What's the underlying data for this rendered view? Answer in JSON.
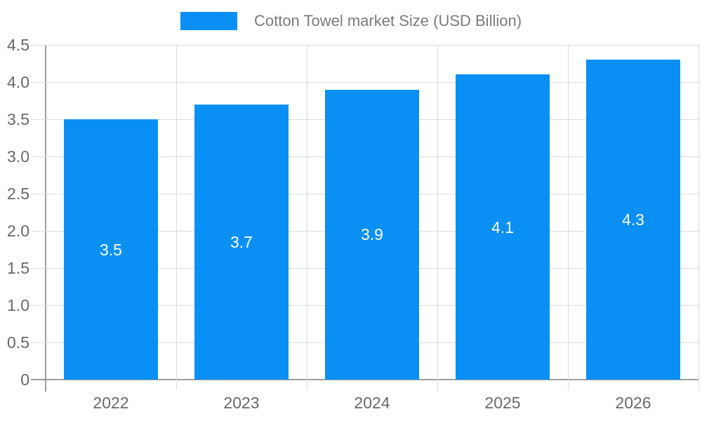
{
  "chart_data": {
    "type": "bar",
    "title": "",
    "legend": {
      "label": "Cotton Towel market Size (USD Billion)",
      "position": "top"
    },
    "categories": [
      "2022",
      "2023",
      "2024",
      "2025",
      "2026"
    ],
    "series": [
      {
        "name": "Cotton Towel market Size (USD Billion)",
        "values": [
          3.5,
          3.7,
          3.9,
          4.1,
          4.3
        ]
      }
    ],
    "value_labels": [
      "3.5",
      "3.7",
      "3.9",
      "4.1",
      "4.3"
    ],
    "xlabel": "",
    "ylabel": "",
    "ylim": [
      0,
      4.5
    ],
    "y_ticks": [
      {
        "value": 0,
        "label": "0"
      },
      {
        "value": 0.5,
        "label": "0.5"
      },
      {
        "value": 1,
        "label": "1.0"
      },
      {
        "value": 1.5,
        "label": "1.5"
      },
      {
        "value": 2,
        "label": "2.0"
      },
      {
        "value": 2.5,
        "label": "2.5"
      },
      {
        "value": 3,
        "label": "3.0"
      },
      {
        "value": 3.5,
        "label": "3.5"
      },
      {
        "value": 4,
        "label": "4.0"
      },
      {
        "value": 4.5,
        "label": "4.5"
      }
    ],
    "grid": true,
    "colors": {
      "bar": "#0a90f5",
      "grid_line": "#dcdcdc",
      "axis_line": "#9e9e9e",
      "axis_label": "#696969",
      "legend_text": "#7b7b7b",
      "value_label": "#ffffff",
      "background": "#ffffff"
    }
  }
}
